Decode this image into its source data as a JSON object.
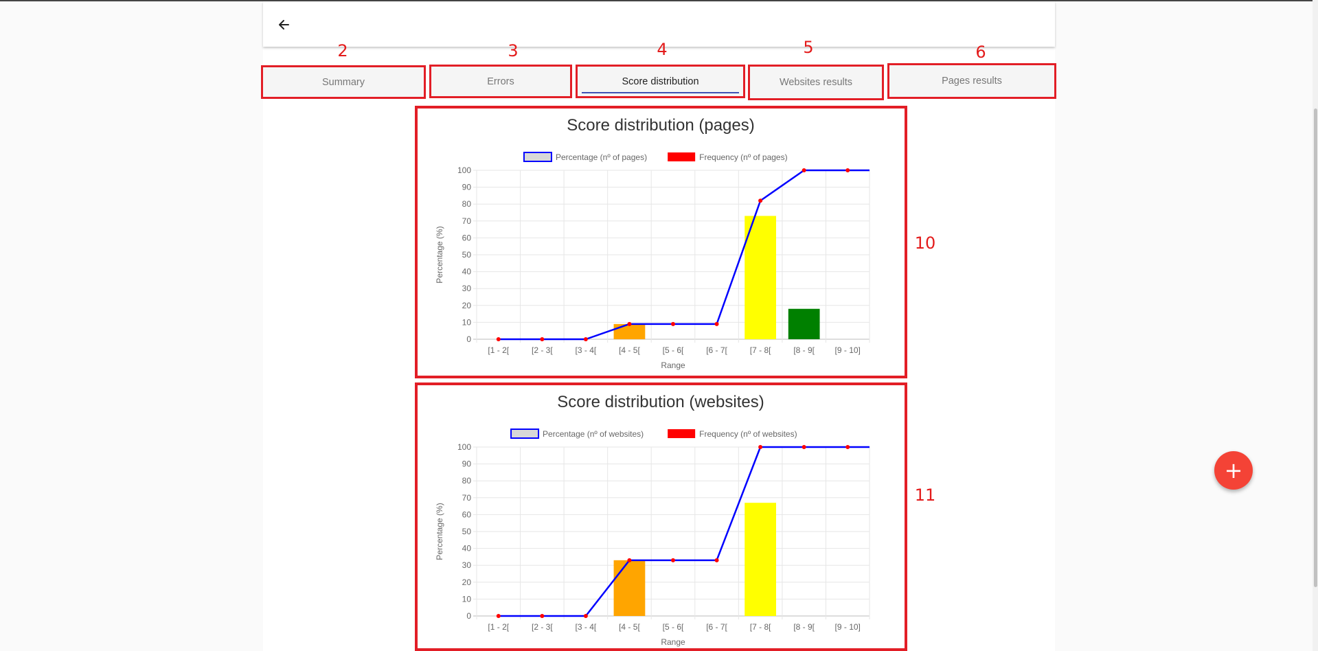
{
  "tabs": [
    {
      "number": "2",
      "label": "Summary",
      "active": false
    },
    {
      "number": "3",
      "label": "Errors",
      "active": false
    },
    {
      "number": "4",
      "label": "Score distribution",
      "active": true
    },
    {
      "number": "5",
      "label": "Websites results",
      "active": false
    },
    {
      "number": "6",
      "label": "Pages results",
      "active": false
    }
  ],
  "colors": {
    "annotation_red": "#e21e26",
    "tab_underline": "#3f51b5",
    "line": "#0000ff",
    "point": "#ff0000",
    "bar_orange": "#ffa500",
    "bar_yellow": "#ffff00",
    "bar_green": "#008000",
    "fab": "#f44336"
  },
  "icons": {
    "back": "arrow-back-icon",
    "fab": "plus-icon"
  },
  "fab_label": "+",
  "chart_data": [
    {
      "annotation": "10",
      "type": "bar",
      "title": "Score distribution (pages)",
      "xlabel": "Range",
      "ylabel": "Percentage (%)",
      "ylim": [
        0,
        100
      ],
      "yticks": [
        0,
        10,
        20,
        30,
        40,
        50,
        60,
        70,
        80,
        90,
        100
      ],
      "grid": true,
      "legend_position": "top",
      "categories": [
        "[1 - 2[",
        "[2 - 3[",
        "[3 - 4[",
        "[4 - 5[",
        "[5 - 6[",
        "[6 - 7[",
        "[7 - 8[",
        "[8 - 9[",
        "[9 - 10]"
      ],
      "series": [
        {
          "name": "Percentage (nº of pages)",
          "type": "line",
          "values": [
            0,
            0,
            0,
            9,
            9,
            9,
            82,
            100,
            100
          ]
        },
        {
          "name": "Frequency (nº of pages)",
          "type": "bar",
          "values": [
            0,
            0,
            0,
            9,
            0,
            0,
            73,
            18,
            0
          ],
          "colors": [
            "#ffa500",
            "#ffa500",
            "#ffa500",
            "#ffa500",
            "#ffa500",
            "#ffa500",
            "#ffff00",
            "#008000",
            "#008000"
          ]
        }
      ]
    },
    {
      "annotation": "11",
      "type": "bar",
      "title": "Score distribution (websites)",
      "xlabel": "Range",
      "ylabel": "Percentage (%)",
      "ylim": [
        0,
        100
      ],
      "yticks": [
        0,
        10,
        20,
        30,
        40,
        50,
        60,
        70,
        80,
        90,
        100
      ],
      "grid": true,
      "legend_position": "top",
      "categories": [
        "[1 - 2[",
        "[2 - 3[",
        "[3 - 4[",
        "[4 - 5[",
        "[5 - 6[",
        "[6 - 7[",
        "[7 - 8[",
        "[8 - 9[",
        "[9 - 10]"
      ],
      "series": [
        {
          "name": "Percentage (nº of websites)",
          "type": "line",
          "values": [
            0,
            0,
            0,
            33,
            33,
            33,
            100,
            100,
            100
          ]
        },
        {
          "name": "Frequency (nº of websites)",
          "type": "bar",
          "values": [
            0,
            0,
            0,
            33,
            0,
            0,
            67,
            0,
            0
          ],
          "colors": [
            "#ffa500",
            "#ffa500",
            "#ffa500",
            "#ffa500",
            "#ffa500",
            "#ffa500",
            "#ffff00",
            "#008000",
            "#008000"
          ]
        }
      ]
    }
  ]
}
